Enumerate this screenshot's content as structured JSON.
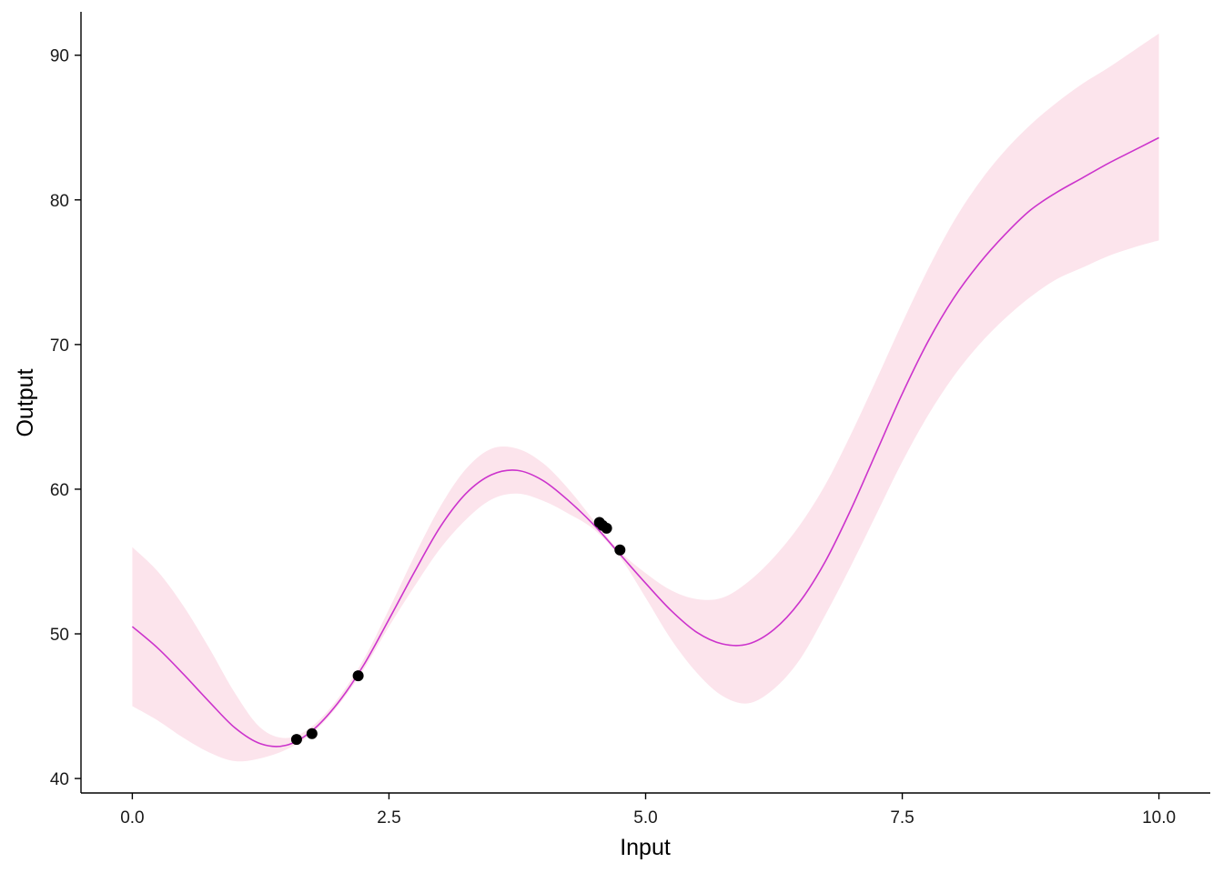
{
  "chart_data": {
    "type": "line",
    "xlabel": "Input",
    "ylabel": "Output",
    "xlim": [
      -0.5,
      10.5
    ],
    "ylim": [
      39,
      93
    ],
    "x_ticks": [
      0,
      2.5,
      5,
      7.5,
      10
    ],
    "x_tick_labels": [
      "0.0",
      "2.5",
      "5.0",
      "7.5",
      "10.0"
    ],
    "y_ticks": [
      40,
      50,
      60,
      70,
      80,
      90
    ],
    "y_tick_labels": [
      "40",
      "50",
      "60",
      "70",
      "80",
      "90"
    ],
    "grid": false,
    "legend": "none",
    "colors": {
      "line": "#cc33cc",
      "band": "#fce4ec",
      "points": "#000000",
      "axis": "#000000"
    },
    "series": [
      {
        "type": "line",
        "x": [
          0,
          0.25,
          0.5,
          0.75,
          1.0,
          1.25,
          1.5,
          1.75,
          2.0,
          2.25,
          2.5,
          2.75,
          3.0,
          3.25,
          3.5,
          3.75,
          4.0,
          4.25,
          4.5,
          4.75,
          5.0,
          5.25,
          5.5,
          5.75,
          6.0,
          6.25,
          6.5,
          6.75,
          7.0,
          7.25,
          7.5,
          7.75,
          8.0,
          8.25,
          8.5,
          8.75,
          9.0,
          9.25,
          9.5,
          9.75,
          10.0
        ],
        "y": [
          50.5,
          49.0,
          47.2,
          45.3,
          43.5,
          42.4,
          42.3,
          43.3,
          45.2,
          47.8,
          51.0,
          54.3,
          57.4,
          59.7,
          61.0,
          61.3,
          60.6,
          59.2,
          57.5,
          55.5,
          53.5,
          51.6,
          50.1,
          49.3,
          49.3,
          50.3,
          52.2,
          55.0,
          58.6,
          62.6,
          66.6,
          70.2,
          73.2,
          75.6,
          77.6,
          79.3,
          80.5,
          81.5,
          82.5,
          83.4,
          84.3
        ]
      },
      {
        "type": "band",
        "x": [
          0,
          0.25,
          0.5,
          0.75,
          1.0,
          1.25,
          1.5,
          1.75,
          2.0,
          2.25,
          2.5,
          2.75,
          3.0,
          3.25,
          3.5,
          3.75,
          4.0,
          4.25,
          4.5,
          4.75,
          5.0,
          5.25,
          5.5,
          5.75,
          6.0,
          6.25,
          6.5,
          6.75,
          7.0,
          7.25,
          7.5,
          7.75,
          8.0,
          8.25,
          8.5,
          8.75,
          9.0,
          9.25,
          9.5,
          9.75,
          10.0
        ],
        "lower": [
          45.0,
          44.0,
          42.8,
          41.8,
          41.2,
          41.4,
          42.0,
          43.1,
          45.0,
          47.5,
          50.5,
          53.3,
          55.9,
          57.9,
          59.3,
          59.7,
          59.2,
          58.3,
          57.2,
          55.3,
          52.5,
          49.6,
          47.3,
          45.7,
          45.2,
          46.2,
          48.2,
          51.3,
          54.7,
          58.3,
          61.9,
          65.1,
          67.8,
          70.0,
          71.8,
          73.3,
          74.5,
          75.3,
          76.1,
          76.7,
          77.2
        ],
        "upper": [
          56.0,
          54.3,
          51.9,
          49.0,
          45.9,
          43.5,
          42.8,
          43.6,
          45.5,
          48.2,
          51.7,
          55.4,
          58.8,
          61.4,
          62.8,
          62.8,
          61.8,
          60.0,
          57.8,
          55.7,
          54.2,
          53.0,
          52.4,
          52.5,
          53.6,
          55.3,
          57.5,
          60.3,
          63.8,
          67.6,
          71.5,
          75.2,
          78.5,
          81.2,
          83.4,
          85.2,
          86.7,
          88.0,
          89.1,
          90.3,
          91.5
        ]
      },
      {
        "type": "scatter",
        "x": [
          1.6,
          1.75,
          2.2,
          4.55,
          4.58,
          4.62,
          4.75
        ],
        "y": [
          42.7,
          43.1,
          47.1,
          57.7,
          57.5,
          57.3,
          55.8
        ]
      }
    ]
  }
}
